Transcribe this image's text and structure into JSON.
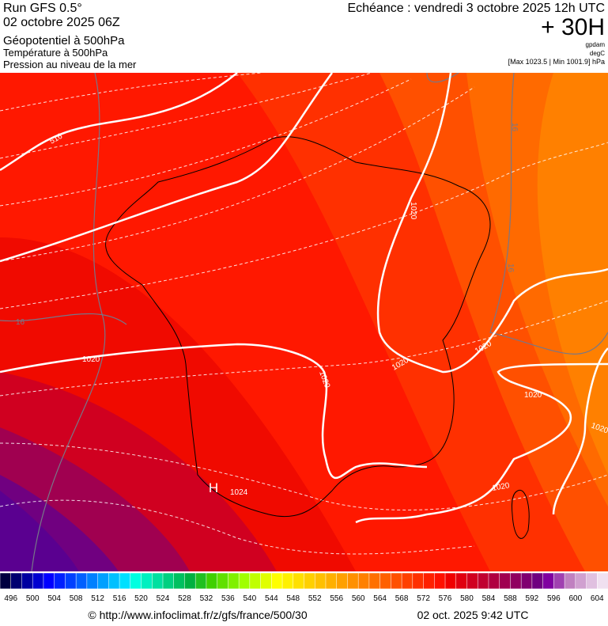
{
  "header": {
    "run": "Run GFS 0.5°",
    "run_date": "02 octobre 2025 06Z",
    "field_1": "Géopotentiel à 500hPa",
    "field_2": "Température à 500hPa",
    "field_3": "Pression au niveau de la mer",
    "forecast": "Echéance : vendredi 3 octobre 2025 12h UTC",
    "lead": "+ 30H",
    "unit_1": "gpdam",
    "unit_2": "degC",
    "range": "[Max 1023.5 | Min 1001.9] hPa"
  },
  "map_labels": [
    "1020",
    "1020",
    "1020",
    "1020",
    "1020",
    "1020",
    "1020",
    "1020",
    "H",
    "1024",
    "16",
    "16",
    "16",
    "516"
  ],
  "colorbar": {
    "labels": [
      496,
      500,
      504,
      508,
      512,
      516,
      520,
      524,
      528,
      532,
      536,
      540,
      544,
      548,
      552,
      556,
      560,
      564,
      568,
      572,
      576,
      580,
      584,
      588,
      592,
      596,
      600,
      604
    ],
    "colors": [
      "#000040",
      "#000070",
      "#0000a0",
      "#0000d0",
      "#0000ff",
      "#0020ff",
      "#0040ff",
      "#0060ff",
      "#0080ff",
      "#00a0ff",
      "#00c0ff",
      "#00e0ff",
      "#00ffe0",
      "#00f0c0",
      "#00e0a0",
      "#00d080",
      "#00c060",
      "#00b040",
      "#20c020",
      "#40d000",
      "#60e000",
      "#80f000",
      "#a0ff00",
      "#c0ff00",
      "#e0ff00",
      "#ffff00",
      "#fff000",
      "#ffe000",
      "#ffd000",
      "#ffc000",
      "#ffb000",
      "#ffa000",
      "#ff9000",
      "#ff8000",
      "#ff7000",
      "#ff6000",
      "#ff5000",
      "#ff4000",
      "#ff3000",
      "#ff2000",
      "#ff1000",
      "#f00000",
      "#e00010",
      "#d00020",
      "#c00030",
      "#b00040",
      "#a00050",
      "#900060",
      "#800070",
      "#700080",
      "#8000a0",
      "#a040b0",
      "#c080c0",
      "#d0a0d0",
      "#e0c0e0",
      "#f0e0f0"
    ]
  },
  "footer": {
    "url": "© http://www.infoclimat.fr/z/gfs/france/500/30",
    "date": "02 oct. 2025  9:42 UTC"
  }
}
